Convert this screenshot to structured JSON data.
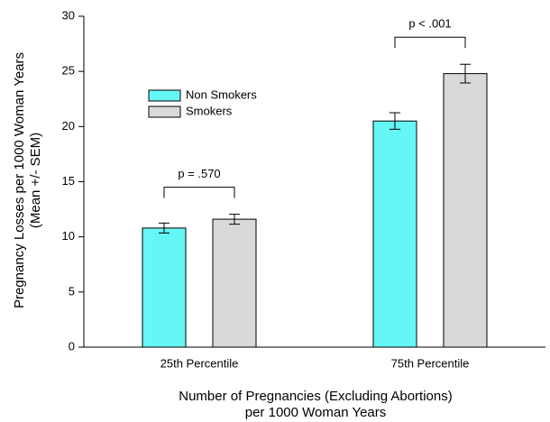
{
  "chart_data": {
    "type": "bar",
    "categories": [
      "25th Percentile",
      "75th Percentile"
    ],
    "series": [
      {
        "name": "Non Smokers",
        "color": "#66f6f6",
        "values": [
          10.8,
          20.5
        ],
        "errors": [
          0.45,
          0.75
        ]
      },
      {
        "name": "Smokers",
        "color": "#d9d9d9",
        "values": [
          11.6,
          24.8
        ],
        "errors": [
          0.45,
          0.85
        ]
      }
    ],
    "ylim": [
      0,
      30
    ],
    "yticks": [
      0,
      5,
      10,
      15,
      20,
      25,
      30
    ],
    "ylabel": [
      "Pregnancy Losses per 1000 Woman Years",
      "(Mean +/- SEM)"
    ],
    "xlabel": [
      "Number of Pregnancies (Excluding Abortions)",
      "per 1000 Woman Years"
    ],
    "annotations": [
      "p = .570",
      "p < .001"
    ]
  }
}
